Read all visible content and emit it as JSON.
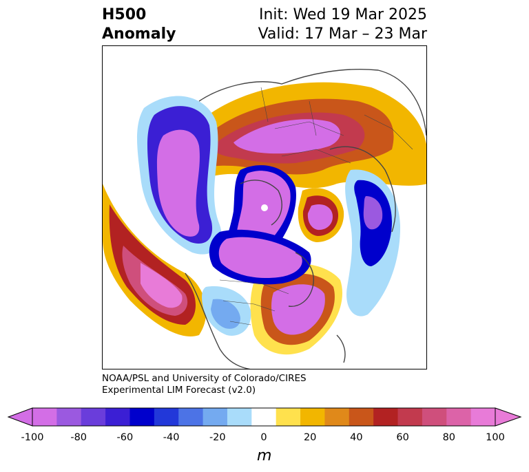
{
  "title": {
    "left_line1": "H500",
    "left_line2": "Anomaly",
    "right_line1": "Init: Wed 19 Mar 2025",
    "right_line2": "Valid: 17 Mar – 23 Mar"
  },
  "credit": {
    "line1": "NOAA/PSL and University of Colorado/CIRES",
    "line2": "Experimental LIM Forecast (v2.0)"
  },
  "colorbar": {
    "unit": "m",
    "levels": [
      -100,
      -90,
      -80,
      -70,
      -60,
      -50,
      -40,
      -30,
      -20,
      -10,
      10,
      20,
      30,
      40,
      50,
      60,
      70,
      80,
      90,
      100
    ],
    "colors": [
      "#d36ee6",
      "#9b59e0",
      "#6a3ddb",
      "#3b1fd4",
      "#0000cc",
      "#2238d9",
      "#4c73e6",
      "#74aaf0",
      "#a9dcfa",
      "#ffffff",
      "#ffe14d",
      "#f2b600",
      "#e0891a",
      "#c9561a",
      "#b22222",
      "#c23a4e",
      "#cf4f7c",
      "#dc63a8",
      "#e87bd8"
    ],
    "tick_labels": [
      "-100",
      "-80",
      "-60",
      "-40",
      "-20",
      "0",
      "20",
      "40",
      "60",
      "80",
      "100"
    ],
    "extend": "both"
  }
}
